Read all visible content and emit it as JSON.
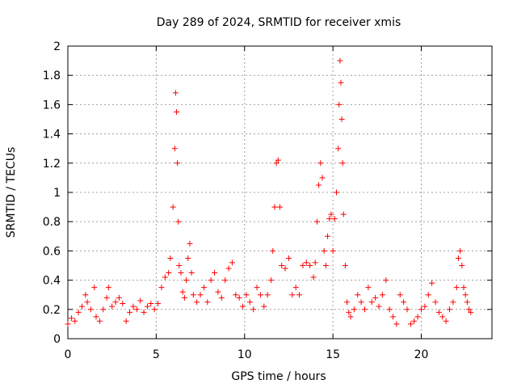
{
  "chart_data": {
    "type": "scatter",
    "title": "Day 289 of 2024, SRMTID for receiver xmis",
    "xlabel": "GPS time / hours",
    "ylabel": "SRMTID / TECUs",
    "xlim": [
      0,
      24
    ],
    "ylim": [
      0,
      2
    ],
    "x_ticks": [
      0,
      5,
      10,
      15,
      20
    ],
    "x_tick_labels": [
      "0",
      "5",
      "10",
      "15",
      "20"
    ],
    "y_ticks": [
      0,
      0.2,
      0.4,
      0.6,
      0.8,
      1,
      1.2,
      1.4,
      1.6,
      1.8,
      2
    ],
    "y_tick_labels": [
      "0",
      "0.2",
      "0.4",
      "0.6",
      "0.8",
      "1",
      "1.2",
      "1.4",
      "1.6",
      "1.8",
      "2"
    ],
    "grid": true,
    "marker": "+",
    "series": [
      {
        "name": "SRMTID",
        "color": "#ff0000",
        "x": [
          0.0,
          0.2,
          0.4,
          0.6,
          0.8,
          1.0,
          1.1,
          1.3,
          1.5,
          1.6,
          1.8,
          2.0,
          2.2,
          2.3,
          2.5,
          2.7,
          2.9,
          3.1,
          3.3,
          3.5,
          3.7,
          3.9,
          4.1,
          4.3,
          4.5,
          4.7,
          4.9,
          5.1,
          5.3,
          5.5,
          5.7,
          5.8,
          5.95,
          6.05,
          6.1,
          6.15,
          6.2,
          6.25,
          6.3,
          6.4,
          6.5,
          6.6,
          6.7,
          6.8,
          6.9,
          7.0,
          7.1,
          7.3,
          7.5,
          7.7,
          7.9,
          8.1,
          8.3,
          8.5,
          8.7,
          8.9,
          9.1,
          9.3,
          9.5,
          9.7,
          9.9,
          10.1,
          10.3,
          10.5,
          10.7,
          10.9,
          11.1,
          11.3,
          11.5,
          11.6,
          11.7,
          11.8,
          11.9,
          12.0,
          12.1,
          12.3,
          12.5,
          12.7,
          12.9,
          13.1,
          13.3,
          13.5,
          13.7,
          13.9,
          14.0,
          14.1,
          14.2,
          14.3,
          14.4,
          14.5,
          14.6,
          14.7,
          14.8,
          14.9,
          15.0,
          15.1,
          15.2,
          15.3,
          15.35,
          15.4,
          15.45,
          15.5,
          15.55,
          15.6,
          15.7,
          15.8,
          15.9,
          16.0,
          16.2,
          16.4,
          16.6,
          16.8,
          17.0,
          17.2,
          17.4,
          17.6,
          17.8,
          18.0,
          18.2,
          18.4,
          18.6,
          18.8,
          19.0,
          19.2,
          19.4,
          19.6,
          19.8,
          20.0,
          20.2,
          20.4,
          20.6,
          20.8,
          21.0,
          21.2,
          21.4,
          21.6,
          21.8,
          22.0,
          22.1,
          22.2,
          22.3,
          22.4,
          22.5,
          22.6,
          22.7,
          22.8
        ],
        "y": [
          0.1,
          0.14,
          0.12,
          0.18,
          0.22,
          0.3,
          0.25,
          0.2,
          0.35,
          0.15,
          0.12,
          0.2,
          0.28,
          0.35,
          0.22,
          0.25,
          0.28,
          0.24,
          0.12,
          0.18,
          0.22,
          0.2,
          0.26,
          0.18,
          0.22,
          0.24,
          0.2,
          0.24,
          0.35,
          0.42,
          0.45,
          0.55,
          0.9,
          1.3,
          1.68,
          1.55,
          1.2,
          0.8,
          0.5,
          0.45,
          0.32,
          0.28,
          0.4,
          0.55,
          0.65,
          0.45,
          0.3,
          0.25,
          0.3,
          0.35,
          0.25,
          0.4,
          0.45,
          0.32,
          0.28,
          0.4,
          0.48,
          0.52,
          0.3,
          0.28,
          0.22,
          0.3,
          0.25,
          0.2,
          0.35,
          0.3,
          0.22,
          0.3,
          0.4,
          0.6,
          0.9,
          1.2,
          1.22,
          0.9,
          0.5,
          0.48,
          0.55,
          0.3,
          0.35,
          0.3,
          0.5,
          0.52,
          0.5,
          0.42,
          0.52,
          0.8,
          1.05,
          1.2,
          1.1,
          0.6,
          0.5,
          0.7,
          0.82,
          0.85,
          0.6,
          0.82,
          1.0,
          1.3,
          1.6,
          1.9,
          1.75,
          1.5,
          1.2,
          0.85,
          0.5,
          0.25,
          0.18,
          0.15,
          0.2,
          0.3,
          0.25,
          0.2,
          0.35,
          0.25,
          0.28,
          0.22,
          0.3,
          0.4,
          0.2,
          0.15,
          0.1,
          0.3,
          0.25,
          0.2,
          0.1,
          0.12,
          0.15,
          0.2,
          0.22,
          0.3,
          0.38,
          0.25,
          0.18,
          0.15,
          0.12,
          0.2,
          0.25,
          0.35,
          0.55,
          0.6,
          0.5,
          0.35,
          0.3,
          0.25,
          0.2,
          0.18
        ]
      }
    ]
  }
}
